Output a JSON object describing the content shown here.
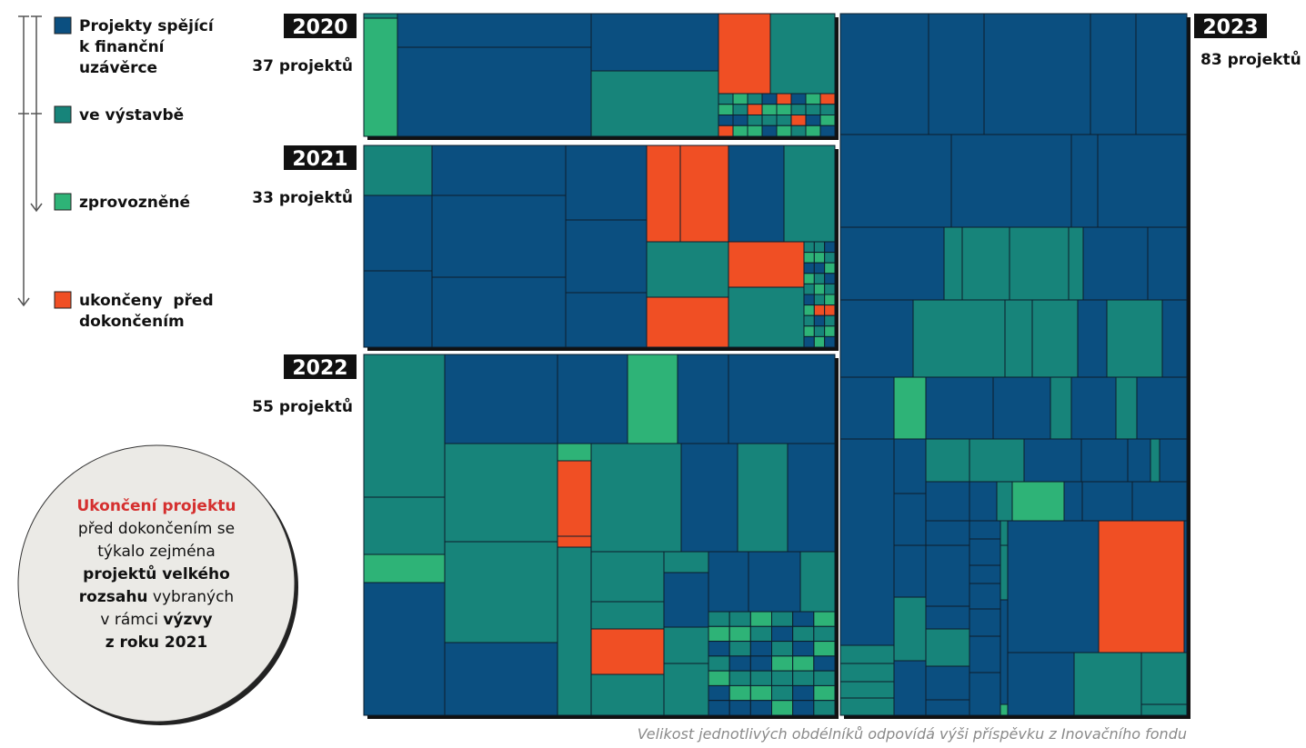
{
  "legend": [
    {
      "lines": [
        "Projekty spějící",
        "k finanční",
        "uzávěrce"
      ]
    },
    {
      "lines": [
        "ve výstavbě"
      ]
    },
    {
      "lines": [
        "zprovozněné"
      ]
    },
    {
      "lines": [
        "ukončeny  před",
        "dokončením"
      ]
    }
  ],
  "panels": [
    {
      "year": "2020",
      "count": "37 projektů"
    },
    {
      "year": "2021",
      "count": "33 projektů"
    },
    {
      "year": "2022",
      "count": "55 projektů"
    },
    {
      "year": "2023",
      "count": "83 projektů"
    }
  ],
  "note": {
    "lines": [
      [
        "Ukončení projektu"
      ],
      [
        "před dokončením se"
      ],
      [
        "týkalo zejména"
      ],
      [
        "projektů velkého"
      ],
      [
        "rozsahu",
        " vybraných"
      ],
      [
        "v rámci ",
        "výzvy"
      ],
      [
        "z roku 2021"
      ]
    ]
  },
  "caption": "Velikost jednotlivých obdélníků odpovídá výši příspěvku z Inovačního fondu"
}
